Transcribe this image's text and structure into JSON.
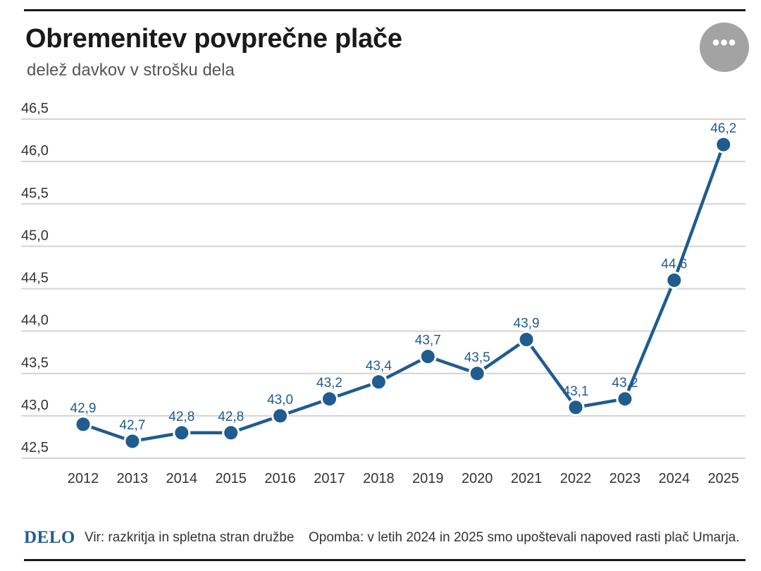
{
  "header": {
    "title": "Obremenitev povprečne plače",
    "subtitle": "delež davkov v strošku dela",
    "more_icon": "more-horizontal-icon",
    "more_glyph": "•••"
  },
  "colors": {
    "line": "#1f5c8f",
    "label": "#1f5c8f",
    "grid": "#d4d4d4",
    "axis_text": "#333333"
  },
  "chart_data": {
    "type": "line",
    "title": "Obremenitev povprečne plače",
    "subtitle": "delež davkov v strošku dela",
    "xlabel": "",
    "ylabel": "",
    "categories": [
      "2012",
      "2013",
      "2014",
      "2015",
      "2016",
      "2017",
      "2018",
      "2019",
      "2020",
      "2021",
      "2022",
      "2023",
      "2024",
      "2025"
    ],
    "series": [
      {
        "values": [
          42.9,
          42.7,
          42.8,
          42.8,
          43.0,
          43.2,
          43.4,
          43.7,
          43.5,
          43.9,
          43.1,
          43.2,
          44.6,
          46.2
        ]
      }
    ],
    "data_labels": [
      "42,9",
      "42,7",
      "42,8",
      "42,8",
      "43,0",
      "43,2",
      "43,4",
      "43,7",
      "43,5",
      "43,9",
      "43,1",
      "43,2",
      "44,6",
      "46,2"
    ],
    "y_ticks": [
      42.5,
      43.0,
      43.5,
      44.0,
      44.5,
      45.0,
      45.5,
      46.0,
      46.5
    ],
    "y_tick_labels": [
      "42,5",
      "43,0",
      "43,5",
      "44,0",
      "44,5",
      "45,0",
      "45,5",
      "46,0",
      "46,5"
    ],
    "ylim": [
      42.5,
      46.5
    ],
    "grid": true,
    "legend": "none"
  },
  "footer": {
    "logo": "DELO",
    "source": "Vir: razkritja in spletna stran družbe",
    "note": "Opomba: v letih 2024 in 2025 smo upoštevali napoved rasti plač Umarja."
  }
}
